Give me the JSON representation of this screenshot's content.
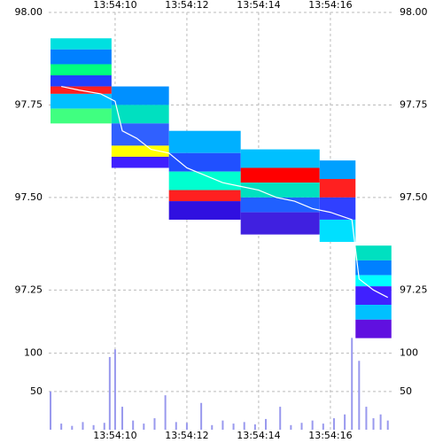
{
  "chart_data": {
    "type": "heatmap",
    "xlim": [
      8.15,
      17.78
    ],
    "xticks": [
      {
        "value": 10,
        "label": "13:54:10"
      },
      {
        "value": 12,
        "label": "13:54:12"
      },
      {
        "value": 14,
        "label": "13:54:14"
      },
      {
        "value": 16,
        "label": "13:54:16"
      }
    ],
    "ylim": [
      97.1,
      98.0
    ],
    "yticks": [
      {
        "value": 98.0,
        "label": "98.00"
      },
      {
        "value": 97.75,
        "label": "97.75"
      },
      {
        "value": 97.5,
        "label": "97.50"
      },
      {
        "value": 97.25,
        "label": "97.25"
      }
    ],
    "y2lim": [
      0,
      110
    ],
    "y2ticks": [
      100,
      50
    ],
    "grid": true,
    "cells": [
      {
        "x": [
          8.2,
          9.9
        ],
        "y": [
          97.9,
          97.93
        ],
        "color": "#00e0e0"
      },
      {
        "x": [
          8.2,
          9.9
        ],
        "y": [
          97.86,
          97.9
        ],
        "color": "#0080ff"
      },
      {
        "x": [
          8.2,
          9.9
        ],
        "y": [
          97.83,
          97.86
        ],
        "color": "#00ff80"
      },
      {
        "x": [
          8.2,
          9.9
        ],
        "y": [
          97.8,
          97.83
        ],
        "color": "#2040ff"
      },
      {
        "x": [
          8.2,
          9.9
        ],
        "y": [
          97.78,
          97.8
        ],
        "color": "#ff2020"
      },
      {
        "x": [
          8.2,
          9.9
        ],
        "y": [
          97.74,
          97.78
        ],
        "color": "#00c0ff"
      },
      {
        "x": [
          8.2,
          9.9
        ],
        "y": [
          97.7,
          97.74
        ],
        "color": "#40ff80"
      },
      {
        "x": [
          9.9,
          11.5
        ],
        "y": [
          97.75,
          97.8
        ],
        "color": "#0090ff"
      },
      {
        "x": [
          9.9,
          11.5
        ],
        "y": [
          97.7,
          97.75
        ],
        "color": "#00e0c0"
      },
      {
        "x": [
          9.9,
          11.5
        ],
        "y": [
          97.64,
          97.7
        ],
        "color": "#3060ff"
      },
      {
        "x": [
          9.9,
          11.5
        ],
        "y": [
          97.61,
          97.64
        ],
        "color": "#ffff00"
      },
      {
        "x": [
          9.9,
          11.5
        ],
        "y": [
          97.58,
          97.61
        ],
        "color": "#4020ff"
      },
      {
        "x": [
          11.5,
          13.5
        ],
        "y": [
          97.62,
          97.68
        ],
        "color": "#00b0ff"
      },
      {
        "x": [
          11.5,
          13.5
        ],
        "y": [
          97.57,
          97.62
        ],
        "color": "#2050ff"
      },
      {
        "x": [
          11.5,
          13.5
        ],
        "y": [
          97.52,
          97.57
        ],
        "color": "#00ffd0"
      },
      {
        "x": [
          11.5,
          13.5
        ],
        "y": [
          97.49,
          97.52
        ],
        "color": "#ff2020"
      },
      {
        "x": [
          11.5,
          13.5
        ],
        "y": [
          97.44,
          97.49
        ],
        "color": "#3010e0"
      },
      {
        "x": [
          13.5,
          15.7
        ],
        "y": [
          97.58,
          97.63
        ],
        "color": "#00c0ff"
      },
      {
        "x": [
          13.5,
          15.7
        ],
        "y": [
          97.54,
          97.58
        ],
        "color": "#ff0000"
      },
      {
        "x": [
          13.5,
          15.7
        ],
        "y": [
          97.5,
          97.54
        ],
        "color": "#00e0c0"
      },
      {
        "x": [
          13.5,
          15.7
        ],
        "y": [
          97.46,
          97.5
        ],
        "color": "#2060ff"
      },
      {
        "x": [
          13.5,
          15.7
        ],
        "y": [
          97.4,
          97.46
        ],
        "color": "#4020e0"
      },
      {
        "x": [
          15.7,
          16.7
        ],
        "y": [
          97.55,
          97.6
        ],
        "color": "#00a0ff"
      },
      {
        "x": [
          15.7,
          16.7
        ],
        "y": [
          97.5,
          97.55
        ],
        "color": "#ff2020"
      },
      {
        "x": [
          15.7,
          16.7
        ],
        "y": [
          97.44,
          97.5
        ],
        "color": "#3040ff"
      },
      {
        "x": [
          15.7,
          16.7
        ],
        "y": [
          97.38,
          97.44
        ],
        "color": "#00e0ff"
      },
      {
        "x": [
          16.7,
          17.7
        ],
        "y": [
          97.33,
          97.37
        ],
        "color": "#00e0c0"
      },
      {
        "x": [
          16.7,
          17.7
        ],
        "y": [
          97.29,
          97.33
        ],
        "color": "#0080ff"
      },
      {
        "x": [
          16.7,
          17.7
        ],
        "y": [
          97.26,
          97.29
        ],
        "color": "#00ffff"
      },
      {
        "x": [
          16.7,
          17.7
        ],
        "y": [
          97.21,
          97.26
        ],
        "color": "#4020ff"
      },
      {
        "x": [
          16.7,
          17.7
        ],
        "y": [
          97.17,
          97.21
        ],
        "color": "#00c0ff"
      },
      {
        "x": [
          16.7,
          17.7
        ],
        "y": [
          97.12,
          97.17
        ],
        "color": "#6010e0"
      }
    ],
    "series": [
      {
        "color": "#ffffff",
        "x": [
          8.5,
          9.0,
          9.6,
          10.0,
          10.2,
          10.6,
          11.0,
          11.5,
          12.0,
          12.5,
          13.0,
          13.5,
          14.0,
          14.5,
          15.0,
          15.5,
          16.0,
          16.6,
          16.8,
          17.2,
          17.6
        ],
        "values": [
          97.8,
          97.79,
          97.78,
          97.76,
          97.68,
          97.66,
          97.63,
          97.62,
          97.58,
          97.56,
          97.54,
          97.53,
          97.52,
          97.5,
          97.49,
          97.47,
          97.46,
          97.44,
          97.28,
          97.25,
          97.23
        ]
      },
      {
        "color": "#9999ee",
        "axis": "y2",
        "x": [
          8.2,
          8.5,
          8.8,
          9.1,
          9.4,
          9.7,
          9.85,
          10.0,
          10.2,
          10.5,
          10.8,
          11.1,
          11.4,
          11.7,
          12.0,
          12.4,
          12.7,
          13.0,
          13.3,
          13.6,
          13.9,
          14.2,
          14.6,
          14.9,
          15.2,
          15.5,
          15.8,
          16.1,
          16.4,
          16.6,
          16.8,
          17.0,
          17.2,
          17.4,
          17.6
        ],
        "values": [
          50,
          8,
          5,
          10,
          6,
          9,
          95,
          105,
          30,
          12,
          8,
          15,
          45,
          10,
          9,
          35,
          6,
          12,
          8,
          10,
          7,
          14,
          30,
          6,
          9,
          12,
          8,
          15,
          20,
          120,
          90,
          30,
          15,
          20,
          12
        ]
      }
    ]
  }
}
